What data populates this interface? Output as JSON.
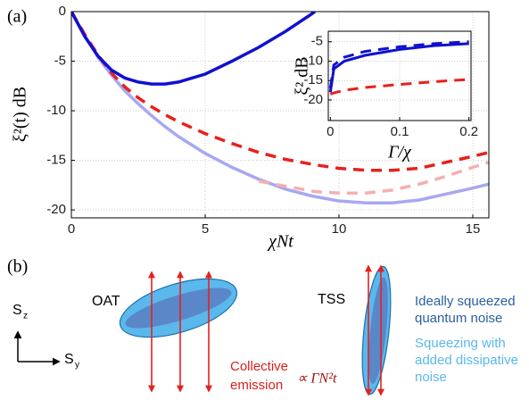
{
  "chart_data": [
    {
      "type": "line",
      "panel_label": "(a)",
      "xlabel": "χNt",
      "ylabel": "ξ²(t) dB",
      "x": [
        0,
        0.5,
        1,
        1.5,
        2,
        2.5,
        3,
        3.5,
        4,
        5,
        6,
        7,
        8,
        9,
        9.1,
        10,
        11,
        12,
        13,
        14,
        15,
        15.6
      ],
      "series": [
        {
          "color": "#a8a8f0",
          "linestyle": "solid",
          "values": [
            0,
            -2.4,
            -4.6,
            -6.4,
            -8,
            -9.3,
            -10.5,
            -11.6,
            -12.6,
            -14.3,
            -15.7,
            -16.9,
            -17.9,
            -18.6,
            -18.65,
            -19.1,
            -19.3,
            -19.3,
            -19,
            -18.4,
            -17.8,
            -17.4
          ]
        },
        {
          "color": "#f4b0b0",
          "linestyle": "dashed",
          "values": [
            null,
            null,
            null,
            null,
            null,
            null,
            null,
            null,
            null,
            null,
            null,
            -17.1,
            -17.6,
            -18.1,
            -18.15,
            -18.3,
            -18.3,
            -18,
            -17.4,
            -16.6,
            -15.7,
            -15.2
          ]
        },
        {
          "color": "#e8201c",
          "linestyle": "dashed",
          "values": [
            0,
            -2.3,
            -4.4,
            -6.2,
            -7.6,
            -8.7,
            -9.6,
            -10.4,
            -11.1,
            -12.3,
            -13.3,
            -14.2,
            -14.9,
            -15.4,
            -15.45,
            -15.8,
            -16,
            -16,
            -15.8,
            -15.2,
            -14.6,
            -14.2
          ]
        },
        {
          "color": "#1010d0",
          "linestyle": "solid",
          "values": [
            0,
            -2.5,
            -4.5,
            -5.9,
            -6.7,
            -7.1,
            -7.3,
            -7.3,
            -7.1,
            -6.3,
            -5,
            -3.6,
            -2,
            -0.2,
            0,
            null,
            null,
            null,
            null,
            null,
            null,
            null
          ]
        }
      ],
      "xlim": [
        0,
        15.6
      ],
      "ylim": [
        -20.8,
        0
      ],
      "xticks": [
        0,
        5,
        10,
        15
      ],
      "yticks": [
        0,
        -5,
        -10,
        -15,
        -20
      ],
      "grid": true
    },
    {
      "type": "line",
      "xlabel": "Γ/χ",
      "ylabel": "ξ² dB",
      "x": [
        0,
        0.005,
        0.02,
        0.05,
        0.1,
        0.15,
        0.2
      ],
      "series": [
        {
          "color": "#e8201c",
          "linestyle": "dashed",
          "values": [
            -18.5,
            -18.2,
            -17.5,
            -16.8,
            -16,
            -15.3,
            -14.7
          ]
        },
        {
          "color": "#1010d0",
          "linestyle": "solid",
          "values": [
            -18,
            -12,
            -10,
            -8.5,
            -7,
            -6,
            -5.5
          ]
        },
        {
          "color": "#1010d0",
          "linestyle": "dashed",
          "values": [
            -17,
            -11,
            -9,
            -7.5,
            -6.3,
            -5.5,
            -5
          ]
        }
      ],
      "xlim": [
        -0.003,
        0.203
      ],
      "ylim": [
        -25.3,
        -2.3
      ],
      "xticks": [
        0,
        0.1,
        0.2
      ],
      "yticks": [
        -5,
        -10,
        -15,
        -20
      ],
      "grid": true
    }
  ],
  "diagram": {
    "panel_label": "(b)",
    "oat": "OAT",
    "tss": "TSS",
    "axis_z": {
      "symbol": "S",
      "sub": "z"
    },
    "axis_y": {
      "symbol": "S",
      "sub": "y"
    },
    "emission": [
      "Collective",
      "emission"
    ],
    "scaling": "∝ ΓN²t",
    "legend_ideal": [
      "Ideally squeezed",
      "quantum noise"
    ],
    "legend_dissipative": [
      "Squeezing with",
      "added dissipative",
      "noise"
    ]
  }
}
